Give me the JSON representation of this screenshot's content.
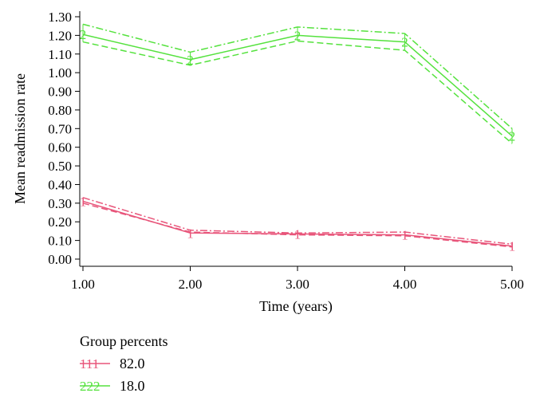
{
  "chart_data": {
    "type": "line",
    "xlabel": "Time (years)",
    "ylabel": "Mean readmission rate",
    "xlim": [
      1,
      5
    ],
    "ylim": [
      0,
      1.3
    ],
    "x_ticks": [
      "1.00",
      "2.00",
      "3.00",
      "4.00",
      "5.00"
    ],
    "y_ticks": [
      "0.00",
      "0.10",
      "0.20",
      "0.30",
      "0.40",
      "0.50",
      "0.60",
      "0.70",
      "0.80",
      "0.90",
      "1.00",
      "1.10",
      "1.20",
      "1.30"
    ],
    "grid": false,
    "legend_title": "Group percents",
    "legend_position": "bottom-left",
    "series": [
      {
        "name": "82.0",
        "marker": "1",
        "legend_marker": "111",
        "color": "#e8557a",
        "x": [
          1,
          2,
          3,
          4,
          5
        ],
        "values": [
          0.31,
          0.14,
          0.135,
          0.13,
          0.07
        ],
        "upper": [
          0.33,
          0.155,
          0.14,
          0.145,
          0.08
        ],
        "lower": [
          0.3,
          0.145,
          0.13,
          0.125,
          0.065
        ]
      },
      {
        "name": "18.0",
        "marker": "2",
        "legend_marker": "222",
        "color": "#55e23e",
        "x": [
          1,
          2,
          3,
          4,
          5
        ],
        "values": [
          1.205,
          1.07,
          1.2,
          1.165,
          0.66
        ],
        "upper": [
          1.26,
          1.11,
          1.245,
          1.21,
          0.7
        ],
        "lower": [
          1.165,
          1.04,
          1.17,
          1.12,
          0.62
        ]
      }
    ]
  }
}
